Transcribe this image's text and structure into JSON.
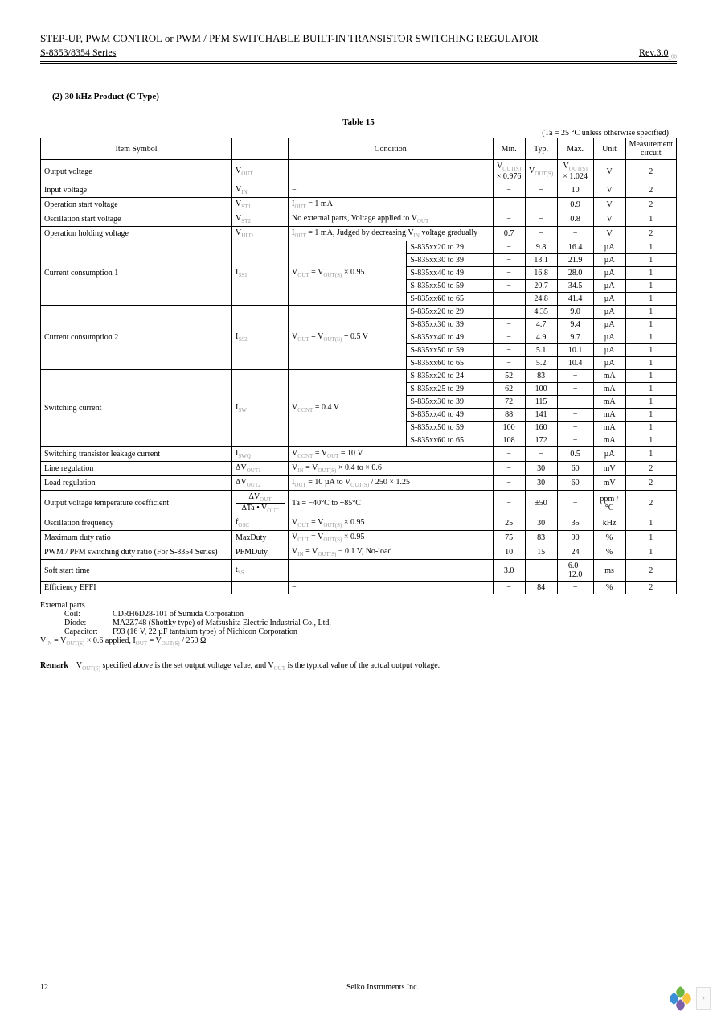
{
  "header": {
    "title": "STEP-UP, PWM CONTROL or PWM / PFM SWITCHABLE BUILT-IN TRANSISTOR SWITCHING REGULATOR",
    "series": "S-8353/8354 Series",
    "rev": "Rev.3.0",
    "rev_suffix": "_00"
  },
  "section_title": "(2) 30 kHz Product (C Type)",
  "table_label": "Table 15",
  "condition_note": "(Ta = 25 °C unless otherwise specified)",
  "columns": [
    "Item",
    "Symbol",
    "Condition",
    "",
    "Min.",
    "Typ.",
    "Max.",
    "Unit",
    "Measurement circuit"
  ],
  "rows": [
    {
      "item": "Output voltage",
      "sym": "V",
      "sym_sub": "OUT",
      "cond": "−",
      "c2": "",
      "min": "V",
      "min_sub": "OUT(S)",
      "min_x": "× 0.976",
      "typ": "V",
      "typ_sub": "OUT(S)",
      "max": "V",
      "max_sub": "OUT(S)",
      "max_x": "× 1.024",
      "unit": "V",
      "mc": "2"
    },
    {
      "item": "Input voltage",
      "sym": "V",
      "sym_sub": "IN",
      "cond": "−",
      "c2": "",
      "min": "−",
      "typ": "−",
      "max": "10",
      "unit": "V",
      "mc": "2"
    },
    {
      "item": "Operation start voltage",
      "sym": "V",
      "sym_sub": "ST1",
      "cond": "I",
      "cond_sub": "OUT",
      "cond_t": " = 1 mA",
      "c2": "",
      "min": "−",
      "typ": "−",
      "max": "0.9",
      "unit": "V",
      "mc": "2"
    },
    {
      "item": "Oscillation start voltage",
      "sym": "V",
      "sym_sub": "ST2",
      "cond": "No external parts, Voltage applied to V",
      "cond_sub": "OUT",
      "c2": "",
      "min": "−",
      "typ": "−",
      "max": "0.8",
      "unit": "V",
      "mc": "1"
    },
    {
      "item": "Operation holding voltage",
      "sym": "V",
      "sym_sub": "HLD",
      "cond": "I",
      "cond_sub": "OUT",
      "cond_t": " = 1 mA, Judged by decreasing V",
      "cond_sub2": "IN",
      "cond_t2": " voltage gradually",
      "c2": "",
      "min": "0.7",
      "typ": "−",
      "max": "−",
      "unit": "V",
      "mc": "2"
    }
  ],
  "cc1": {
    "item": "Current consumption 1",
    "sym": "I",
    "sym_sub": "SS1",
    "cond": "V",
    "cond_sub": "OUT",
    "cond_t": " = V",
    "cond_sub2": "OUT(S)",
    "cond_t2": " × 0.95",
    "subrows": [
      {
        "range": "S-835xx20 to 29",
        "min": "−",
        "typ": "9.8",
        "max": "16.4",
        "unit": "µA",
        "mc": "1"
      },
      {
        "range": "S-835xx30 to 39",
        "min": "−",
        "typ": "13.1",
        "max": "21.9",
        "unit": "µA",
        "mc": "1"
      },
      {
        "range": "S-835xx40 to 49",
        "min": "−",
        "typ": "16.8",
        "max": "28.0",
        "unit": "µA",
        "mc": "1"
      },
      {
        "range": "S-835xx50 to 59",
        "min": "−",
        "typ": "20.7",
        "max": "34.5",
        "unit": "µA",
        "mc": "1"
      },
      {
        "range": "S-835xx60 to 65",
        "min": "−",
        "typ": "24.8",
        "max": "41.4",
        "unit": "µA",
        "mc": "1"
      }
    ]
  },
  "cc2": {
    "item": "Current consumption 2",
    "sym": "I",
    "sym_sub": "SS2",
    "cond": "V",
    "cond_sub": "OUT",
    "cond_t": " = V",
    "cond_sub2": "OUT(S)",
    "cond_t2": " + 0.5 V",
    "subrows": [
      {
        "range": "S-835xx20 to 29",
        "min": "−",
        "typ": "4.35",
        "max": "9.0",
        "unit": "µA",
        "mc": "1"
      },
      {
        "range": "S-835xx30 to 39",
        "min": "−",
        "typ": "4.7",
        "max": "9.4",
        "unit": "µA",
        "mc": "1"
      },
      {
        "range": "S-835xx40 to 49",
        "min": "−",
        "typ": "4.9",
        "max": "9.7",
        "unit": "µA",
        "mc": "1"
      },
      {
        "range": "S-835xx50 to 59",
        "min": "−",
        "typ": "5.1",
        "max": "10.1",
        "unit": "µA",
        "mc": "1"
      },
      {
        "range": "S-835xx60 to 65",
        "min": "−",
        "typ": "5.2",
        "max": "10.4",
        "unit": "µA",
        "mc": "1"
      }
    ]
  },
  "sw": {
    "item": "Switching current",
    "sym": "I",
    "sym_sub": "SW",
    "cond": "V",
    "cond_sub": "CONT",
    "cond_t": " = 0.4 V",
    "subrows": [
      {
        "range": "S-835xx20 to 24",
        "min": "52",
        "typ": "83",
        "max": "−",
        "unit": "mA",
        "mc": "1"
      },
      {
        "range": "S-835xx25 to 29",
        "min": "62",
        "typ": "100",
        "max": "−",
        "unit": "mA",
        "mc": "1"
      },
      {
        "range": "S-835xx30 to 39",
        "min": "72",
        "typ": "115",
        "max": "−",
        "unit": "mA",
        "mc": "1"
      },
      {
        "range": "S-835xx40 to 49",
        "min": "88",
        "typ": "141",
        "max": "−",
        "unit": "mA",
        "mc": "1"
      },
      {
        "range": "S-835xx50 to 59",
        "min": "100",
        "typ": "160",
        "max": "−",
        "unit": "mA",
        "mc": "1"
      },
      {
        "range": "S-835xx60 to 65",
        "min": "108",
        "typ": "172",
        "max": "−",
        "unit": "mA",
        "mc": "1"
      }
    ]
  },
  "tail": [
    {
      "item": "Switching transistor leakage current",
      "sym": "I",
      "sym_sub": "SWQ",
      "cond": "V",
      "cond_sub": "CONT",
      "cond_t": " = V",
      "cond_sub2": "OUT",
      "cond_t2": " = 10 V",
      "min": "−",
      "typ": "−",
      "max": "0.5",
      "unit": "µA",
      "mc": "1"
    },
    {
      "item": "Line regulation",
      "sym": "ΔV",
      "sym_sub": "OUT1",
      "cond": "V",
      "cond_sub": "IN",
      "cond_t": " = V",
      "cond_sub2": "OUT(S)",
      "cond_t2": " × 0.4 to × 0.6",
      "min": "−",
      "typ": "30",
      "max": "60",
      "unit": "mV",
      "mc": "2"
    },
    {
      "item": "Load regulation",
      "sym": "ΔV",
      "sym_sub": "OUT2",
      "cond": "I",
      "cond_sub": "OUT",
      "cond_t": " = 10 µA to V",
      "cond_sub2": "OUT(S)",
      "cond_t2": " / 250 × 1.25",
      "min": "−",
      "typ": "30",
      "max": "60",
      "unit": "mV",
      "mc": "2"
    }
  ],
  "tempco": {
    "item": "Output voltage temperature coefficient",
    "sym1": "ΔV",
    "sym1_sub": "OUT",
    "sym2": "ΔTa • V",
    "sym2_sub": "OUT",
    "cond": "Ta = −40°C to +85°C",
    "min": "−",
    "typ": "±50",
    "max": "−",
    "unit": "ppm / °C",
    "mc": "2"
  },
  "tail2": [
    {
      "item": "Oscillation frequency",
      "sym": "f",
      "sym_sub": "OSC",
      "cond": "V",
      "cond_sub": "OUT",
      "cond_t": " = V",
      "cond_sub2": "OUT(S)",
      "cond_t2": " × 0.95",
      "min": "25",
      "typ": "30",
      "max": "35",
      "unit": "kHz",
      "mc": "1"
    },
    {
      "item": "Maximum duty ratio",
      "sym": "MaxDuty",
      "cond": "V",
      "cond_sub": "OUT",
      "cond_t": " = V",
      "cond_sub2": "OUT(S)",
      "cond_t2": " × 0.95",
      "min": "75",
      "typ": "83",
      "max": "90",
      "unit": "%",
      "mc": "1"
    },
    {
      "item": "PWM / PFM switching duty ratio (For S-8354 Series)",
      "sym": "PFMDuty",
      "cond": "V",
      "cond_sub": "IN",
      "cond_t": " = V",
      "cond_sub2": "OUT(S)",
      "cond_t2": " − 0.1 V, No-load",
      "min": "10",
      "typ": "15",
      "max": "24",
      "unit": "%",
      "mc": "1"
    },
    {
      "item": "Soft start time",
      "sym": "t",
      "sym_sub": "SS",
      "cond": "−",
      "min": "3.0",
      "typ": "−",
      "max": "6.0",
      "max2": "12.0",
      "unit": "ms",
      "mc": "2"
    },
    {
      "item": "Efficiency EFFI",
      "sym": "",
      "cond": "−",
      "min": "−",
      "typ": "84",
      "max": "−",
      "unit": "%",
      "mc": "2"
    }
  ],
  "notes": {
    "heading": "External parts",
    "coil_label": "Coil:",
    "coil": "CDRH6D28-101 of Sumida Corporation",
    "diode_label": "Diode:",
    "diode": "MA2Z748 (Shottky type) of Matsushita Electric Industrial Co., Ltd.",
    "cap_label": "Capacitor:",
    "cap": "F93 (16 V, 22 µF tantalum type) of Nichicon Corporation",
    "vline": "V",
    "vline_sub": "IN",
    "vline_t": " = V",
    "vline_sub2": "OUT(S)",
    "vline_t2": " × 0.6 applied, I",
    "vline_sub3": "OUT",
    "vline_t3": " = V",
    "vline_sub4": "OUT(S)",
    "vline_t4": " / 250 Ω"
  },
  "remark": {
    "label": "Remark",
    "t1": "V",
    "t1_sub": "OUT(S)",
    "t2": " specified above is the set output voltage value, and V",
    "t2_sub": "OUT",
    "t3": " is the typical value of the actual output voltage."
  },
  "footer": {
    "page": "12",
    "company": "Seiko Instruments Inc."
  },
  "logo_colors": {
    "a": "#6db544",
    "b": "#f9c440",
    "c": "#3b8fd6",
    "d": "#7b5fa8"
  }
}
